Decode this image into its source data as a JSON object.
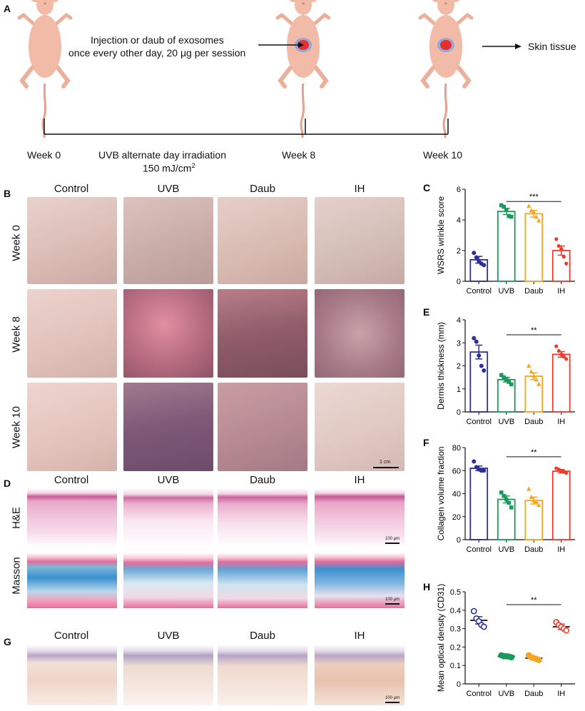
{
  "panel_a": {
    "letter": "A",
    "injection_line1": "Injection or daub of exosomes",
    "injection_line2": "once every other day, 20 μg per session",
    "skin_tissue": "Skin tissue",
    "week0": "Week 0",
    "week8": "Week 8",
    "week10": "Week 10",
    "uvb_line1": "UVB alternate day irradiation",
    "uvb_line2_main": "150 mJ/cm",
    "uvb_line2_sup": "2"
  },
  "panel_b": {
    "letter": "B",
    "columns": [
      "Control",
      "UVB",
      "Daub",
      "IH"
    ],
    "rows": [
      "Week 0",
      "Week 8",
      "Week 10"
    ],
    "scale": "1 cm"
  },
  "panel_d": {
    "letter": "D",
    "columns": [
      "Control",
      "UVB",
      "Daub",
      "IH"
    ],
    "rows": [
      "H&E",
      "Masson"
    ],
    "scale": "100 μm"
  },
  "panel_g": {
    "letter": "G",
    "columns": [
      "Control",
      "UVB",
      "Daub",
      "IH"
    ],
    "scale": "100 μm"
  },
  "colors": {
    "control": "#2b2f96",
    "uvb": "#1a9a5a",
    "daub": "#f5a623",
    "ih": "#ef3b2c"
  },
  "chart_data": [
    {
      "letter": "C",
      "type": "bar",
      "categories": [
        "Control",
        "UVB",
        "Daub",
        "IH"
      ],
      "values": [
        1.4,
        4.55,
        4.4,
        2.0
      ],
      "errors": [
        0.22,
        0.2,
        0.22,
        0.3
      ],
      "points": [
        [
          1.85,
          1.55,
          1.3,
          1.15,
          1.05
        ],
        [
          4.95,
          4.85,
          4.65,
          4.25,
          4.2
        ],
        [
          4.9,
          4.6,
          4.5,
          4.2,
          3.95
        ],
        [
          2.75,
          2.3,
          2.1,
          1.6,
          1.15
        ]
      ],
      "marker": "bar",
      "ylabel": "WSRS wrinkle score",
      "ylim": [
        0,
        6
      ],
      "yticks": [
        0,
        2,
        4,
        6
      ],
      "sig": {
        "from": 1,
        "to": 3,
        "y": 5.2,
        "label": "***"
      }
    },
    {
      "letter": "E",
      "type": "bar",
      "categories": [
        "Control",
        "UVB",
        "Daub",
        "IH"
      ],
      "values": [
        2.6,
        1.4,
        1.55,
        2.5
      ],
      "errors": [
        0.3,
        0.1,
        0.15,
        0.12
      ],
      "points": [
        [
          3.2,
          3.05,
          2.45,
          2.0,
          1.8
        ],
        [
          1.6,
          1.5,
          1.4,
          1.3,
          1.2
        ],
        [
          2.0,
          1.75,
          1.55,
          1.4,
          1.2
        ],
        [
          2.85,
          2.65,
          2.5,
          2.4,
          2.3
        ]
      ],
      "marker": "bar",
      "ylabel": "Dermis thickness (mm)",
      "ylim": [
        0,
        4
      ],
      "yticks": [
        0,
        1,
        2,
        3,
        4
      ],
      "sig": {
        "from": 1,
        "to": 3,
        "y": 3.35,
        "label": "**"
      }
    },
    {
      "letter": "F",
      "type": "bar",
      "categories": [
        "Control",
        "UVB",
        "Daub",
        "IH"
      ],
      "values": [
        62,
        35,
        34,
        59.5
      ],
      "errors": [
        2.0,
        3.0,
        3.0,
        1.5
      ],
      "points": [
        [
          68,
          63,
          61,
          60,
          60
        ],
        [
          41,
          38,
          35,
          32,
          28
        ],
        [
          44,
          37,
          34,
          33,
          30
        ],
        [
          62,
          61,
          59.5,
          59,
          58
        ]
      ],
      "marker": "bar",
      "ylabel": "Collagen volume fraction",
      "ylim": [
        0,
        80
      ],
      "yticks": [
        0,
        20,
        40,
        60,
        80
      ],
      "sig": {
        "from": 1,
        "to": 3,
        "y": 72,
        "label": "**"
      }
    },
    {
      "letter": "H",
      "type": "scatter",
      "categories": [
        "Control",
        "UVB",
        "Daub",
        "IH"
      ],
      "values": [
        0.345,
        0.15,
        0.14,
        0.31
      ],
      "errors": [
        0.02,
        0.008,
        0.01,
        0.015
      ],
      "points": [
        [
          0.395,
          0.355,
          0.34,
          0.32,
          0.31
        ],
        [
          0.155,
          0.15,
          0.15,
          0.148,
          0.145
        ],
        [
          0.155,
          0.145,
          0.14,
          0.135,
          0.13
        ],
        [
          0.335,
          0.32,
          0.31,
          0.3,
          0.29
        ]
      ],
      "marker": "dot",
      "ylabel": "Mean optical density (CD31)",
      "ylim": [
        0,
        0.5
      ],
      "yticks": [
        0,
        0.1,
        0.2,
        0.3,
        0.4,
        0.5
      ],
      "sig": {
        "from": 1,
        "to": 3,
        "y": 0.43,
        "label": "**"
      }
    }
  ]
}
